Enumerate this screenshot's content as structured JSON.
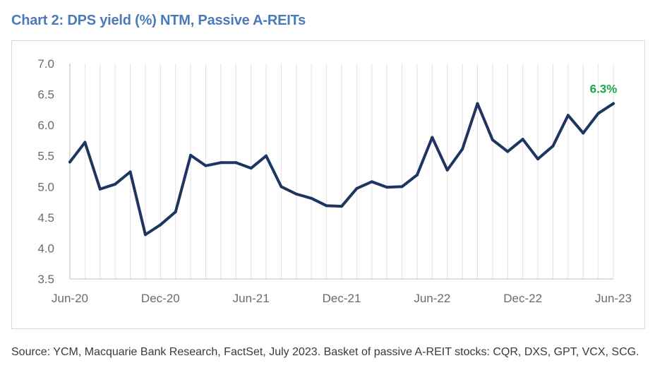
{
  "title": "Chart 2: DPS yield (%) NTM, Passive A-REITs",
  "source": "Source: YCM, Macquarie Bank Research, FactSet, July 2023. Basket of passive A-REIT stocks: CQR, DXS, GPT, VCX, SCG.",
  "colors": {
    "title": "#4a7ab8",
    "line": "#1e3461",
    "annotation": "#1aa64a",
    "grid": "#e3e3e3"
  },
  "chart_data": {
    "type": "line",
    "title": "Chart 2: DPS yield (%) NTM, Passive A-REITs",
    "xlabel": "",
    "ylabel": "",
    "ylim": [
      3.5,
      7.0
    ],
    "yticks": [
      "3.5",
      "4.0",
      "4.5",
      "5.0",
      "5.5",
      "6.0",
      "6.5",
      "7.0"
    ],
    "xticks": [
      "Jun-20",
      "Dec-20",
      "Jun-21",
      "Dec-21",
      "Jun-22",
      "Dec-22",
      "Jun-23"
    ],
    "grid": "vertical",
    "x": [
      "Jun-20",
      "Jul-20",
      "Aug-20",
      "Sep-20",
      "Oct-20",
      "Nov-20",
      "Dec-20",
      "Jan-21",
      "Feb-21",
      "Mar-21",
      "Apr-21",
      "May-21",
      "Jun-21",
      "Jul-21",
      "Aug-21",
      "Sep-21",
      "Oct-21",
      "Nov-21",
      "Dec-21",
      "Jan-22",
      "Feb-22",
      "Mar-22",
      "Apr-22",
      "May-22",
      "Jun-22",
      "Jul-22",
      "Aug-22",
      "Sep-22",
      "Oct-22",
      "Nov-22",
      "Dec-22",
      "Jan-23",
      "Feb-23",
      "Mar-23",
      "Apr-23",
      "May-23",
      "Jun-23"
    ],
    "series": [
      {
        "values": [
          5.4,
          5.72,
          4.96,
          5.04,
          5.24,
          4.22,
          4.38,
          4.59,
          5.51,
          5.34,
          5.39,
          5.39,
          5.3,
          5.5,
          5.0,
          4.88,
          4.81,
          4.69,
          4.68,
          4.97,
          5.08,
          4.99,
          5.0,
          5.19,
          5.8,
          5.27,
          5.61,
          6.35,
          5.76,
          5.57,
          5.77,
          5.45,
          5.66,
          6.16,
          5.87,
          6.19,
          6.35
        ]
      }
    ],
    "annotations": [
      {
        "x": "Jun-23",
        "text": "6.3%"
      }
    ]
  }
}
